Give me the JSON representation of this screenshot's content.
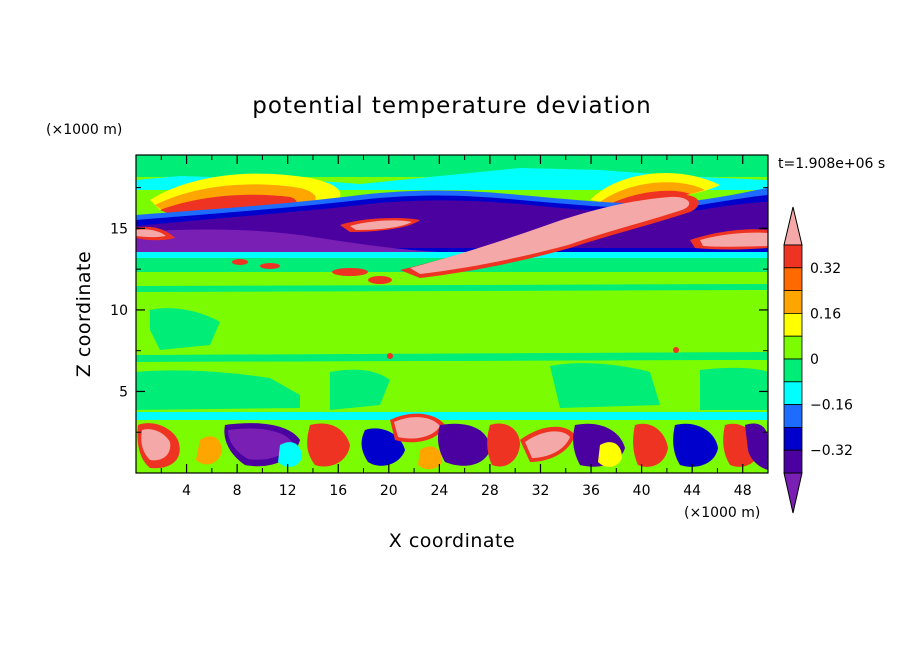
{
  "chart_data": {
    "type": "heatmap",
    "title": "potential temperature deviation",
    "xlabel": "X coordinate",
    "ylabel": "Z coordinate",
    "x_unit": "(×1000 m)",
    "y_unit": "(×1000 m)",
    "time_label": "t=1.908e+06 s",
    "xlim": [
      0,
      50
    ],
    "ylim": [
      0,
      19.5
    ],
    "x_ticks": [
      4,
      8,
      12,
      16,
      20,
      24,
      28,
      32,
      36,
      40,
      44,
      48
    ],
    "y_ticks": [
      5,
      10,
      15
    ],
    "colorbar": {
      "levels": [
        -0.4,
        -0.32,
        -0.24,
        -0.16,
        -0.08,
        0,
        0.08,
        0.16,
        0.24,
        0.32,
        0.4
      ],
      "tick_labels": [
        "0.32",
        "0.16",
        "0",
        "−0.16",
        "−0.32"
      ],
      "tick_values": [
        0.32,
        0.16,
        0,
        -0.16,
        -0.32
      ],
      "colors": {
        "over": "#f4a8a8",
        "bands_top_to_bottom": [
          "#ee3322",
          "#ff6a00",
          "#ffa500",
          "#ffff00",
          "#7cfc00",
          "#00ee77",
          "#00ffff",
          "#1e6cff",
          "#0000cd",
          "#4b00a0"
        ],
        "under": "#7a1fb4"
      },
      "extend": "both"
    },
    "vertical_structure": {
      "stratosphere_band_z": [
        13.5,
        19.5
      ],
      "tropopause_dipole_z": [
        13.5,
        17.5
      ],
      "free_troposphere_z": [
        3.5,
        13.5
      ],
      "boundary_layer_turbulence_z": [
        0,
        3.5
      ]
    }
  }
}
